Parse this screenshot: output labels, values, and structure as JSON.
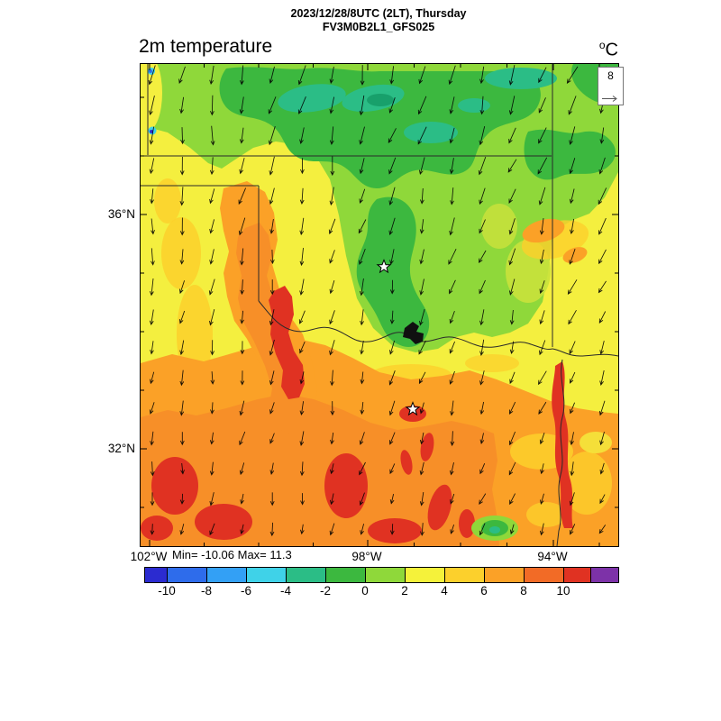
{
  "header": {
    "datetime_line": "2023/12/28/8UTC (2LT), Thursday",
    "model_line": "FV3M0B2L1_GFS025"
  },
  "plot": {
    "title": "2m temperature",
    "units_sup": "o",
    "units_base": "C",
    "stats_text": "Min= -10.06 Max= 11.3",
    "wind_ref_value": "8"
  },
  "axes": {
    "lat": [
      {
        "label": "36°N"
      },
      {
        "label": "32°N"
      }
    ],
    "lon": [
      {
        "label": "102°W"
      },
      {
        "label": "98°W"
      },
      {
        "label": "94°W"
      }
    ]
  },
  "colorbar": {
    "tick_labels": [
      "-10",
      "-8",
      "-6",
      "-4",
      "-2",
      "0",
      "2",
      "4",
      "6",
      "8",
      "10"
    ],
    "segment_colors": [
      "#2b2bd0",
      "#2e6ceb",
      "#33a0f5",
      "#3fd2e8",
      "#2bbd86",
      "#3cb83f",
      "#8fd83a",
      "#f5f23a",
      "#fcd02c",
      "#fba127",
      "#f26b26",
      "#e03222",
      "#7d32a8"
    ]
  },
  "chart_data": {
    "type": "heatmap",
    "title": "2m temperature",
    "subtitle": "FV3M0B2L1_GFS025",
    "valid_time": "2023/12/28/8UTC (2LT), Thursday",
    "units": "°C",
    "stats": {
      "min": -10.06,
      "max": 11.3
    },
    "colorbar_levels": [
      -10,
      -8,
      -6,
      -4,
      -2,
      0,
      2,
      4,
      6,
      8,
      10
    ],
    "colorbar_colors": [
      "#2b2bd0",
      "#2e6ceb",
      "#33a0f5",
      "#3fd2e8",
      "#2bbd86",
      "#3cb83f",
      "#8fd83a",
      "#f5f23a",
      "#fcd02c",
      "#fba127",
      "#f26b26",
      "#e03222",
      "#7d32a8"
    ],
    "lat_tick_labels": [
      "36°N",
      "32°N"
    ],
    "lon_tick_labels": [
      "102°W",
      "98°W",
      "94°W"
    ],
    "region": "Oklahoma / north Texas / southern Kansas (approx 102W-94W, 30N-38N)",
    "wind": {
      "reference_ms": 8,
      "prevailing_direction": "northerly; arrows point south to south-southwest, stronger in north, weaker in south"
    },
    "field_summary": [
      {
        "region": "north and northeast (Kansas into northeast Oklahoma)",
        "temp_c": "-4 to 0 (green, teal pockets -4 to -2)"
      },
      {
        "region": "green tongue down eastern Oklahoma to the Red River",
        "temp_c": "-2 to 0"
      },
      {
        "region": "west and central transitional band",
        "temp_c": "2 to 6 (yellow to gold)"
      },
      {
        "region": "orange plume west-central Oklahoma into northwest Texas",
        "temp_c": "6 to 10 with red core 10+"
      },
      {
        "region": "south and southwest (Texas)",
        "temp_c": "6 to 10 (orange) with red patches 10 to 11.3"
      },
      {
        "region": "red streak along southeast Texas-Arkansas-Louisiana border",
        "temp_c": "10 to 11.3"
      },
      {
        "region": "tiny cold spots on northwest edge",
        "temp_c": "down to -10.06 (cyan/blue dots)"
      }
    ],
    "markers": [
      {
        "type": "star",
        "location": "central Oklahoma"
      },
      {
        "type": "star",
        "location": "north-central Texas (on warm red spot)"
      }
    ],
    "boundaries_drawn": [
      "Kansas-Oklahoma line (37N)",
      "Oklahoma panhandle",
      "Texas-Oklahoma 100W line",
      "Red River",
      "Oklahoma eastern border",
      "southeast state border rivers",
      "Lake Texoma (black blob)"
    ]
  }
}
